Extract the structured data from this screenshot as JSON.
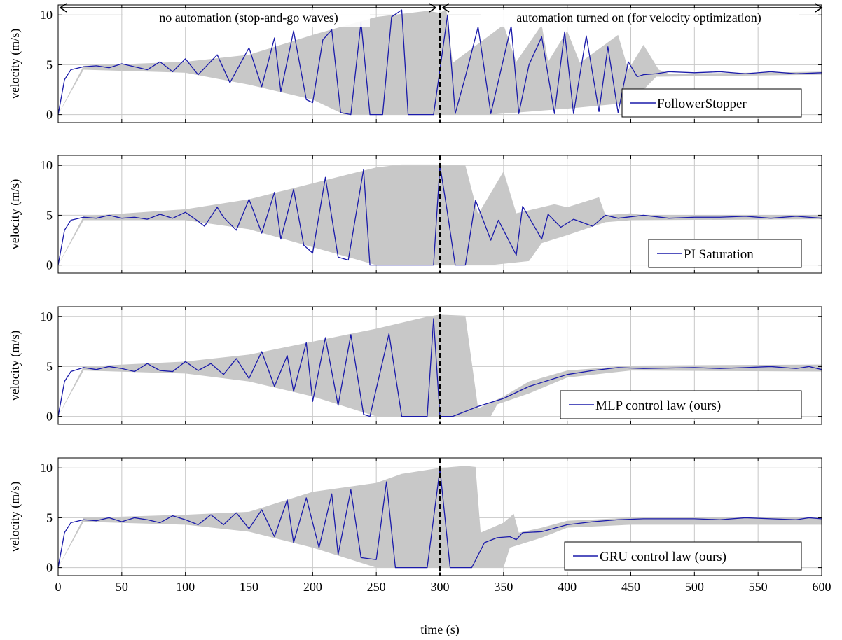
{
  "figure": {
    "annotations": {
      "left_text": "no automation (stop-and-go waves)",
      "right_text": "automation turned on (for velocity optimization)"
    },
    "xlabel": "time (s)",
    "ylabel": "velocity (m/s)"
  },
  "colors": {
    "line": "#1a1aaa",
    "band": "#c8c8c8",
    "grid": "#c8c8c8",
    "divider": "#000000"
  },
  "chart_data": [
    {
      "type": "line",
      "title": "",
      "xlabel": "",
      "ylabel": "velocity (m/s)",
      "xlim": [
        0,
        600
      ],
      "ylim": [
        -0.8,
        11
      ],
      "xticks": [
        0,
        50,
        100,
        150,
        200,
        250,
        300,
        350,
        400,
        450,
        500,
        550,
        600
      ],
      "yticks": [
        0,
        5,
        10
      ],
      "grid": true,
      "legend": "bottom-right",
      "divider_x": 300,
      "series": [
        {
          "name": "FollowerStopper",
          "x": [
            0,
            5,
            10,
            20,
            30,
            40,
            50,
            60,
            70,
            80,
            90,
            100,
            110,
            125,
            135,
            150,
            160,
            170,
            175,
            185,
            195,
            200,
            208,
            215,
            222,
            230,
            238,
            245,
            250,
            255,
            262,
            270,
            275,
            282,
            290,
            295,
            300,
            306,
            312,
            320,
            330,
            340,
            348,
            356,
            362,
            370,
            380,
            390,
            398,
            405,
            415,
            425,
            432,
            440,
            448,
            455,
            460,
            470,
            480,
            500,
            520,
            540,
            560,
            580,
            600
          ],
          "y": [
            0,
            3.5,
            4.5,
            4.8,
            4.9,
            4.7,
            5.1,
            4.8,
            4.5,
            5.3,
            4.3,
            5.6,
            4,
            6,
            3.2,
            6.7,
            2.8,
            7.7,
            2.3,
            8.4,
            1.5,
            1.2,
            7.5,
            8.5,
            0.2,
            0,
            9.3,
            0,
            0,
            0,
            9.8,
            10.5,
            0,
            0,
            0,
            0,
            4.5,
            10,
            0.1,
            3.8,
            8.8,
            0.1,
            4.5,
            8.9,
            0.1,
            5,
            7.8,
            0.1,
            8.3,
            0.1,
            7.9,
            0.3,
            6.8,
            0.2,
            5.3,
            3.8,
            4,
            4.1,
            4.3,
            4.2,
            4.3,
            4.1,
            4.3,
            4.1,
            4.2
          ]
        }
      ],
      "band": {
        "upper": [
          [
            0,
            0
          ],
          [
            20,
            4.9
          ],
          [
            100,
            5.3
          ],
          [
            150,
            6
          ],
          [
            200,
            8
          ],
          [
            250,
            9.8
          ],
          [
            290,
            10.4
          ],
          [
            300,
            10.2
          ],
          [
            305,
            10.6
          ],
          [
            310,
            5.2
          ],
          [
            350,
            9
          ],
          [
            360,
            5.3
          ],
          [
            380,
            9
          ],
          [
            385,
            5.3
          ],
          [
            400,
            8.4
          ],
          [
            410,
            5.2
          ],
          [
            440,
            8
          ],
          [
            448,
            4.5
          ],
          [
            460,
            7
          ],
          [
            472,
            4.5
          ],
          [
            480,
            4.1
          ],
          [
            600,
            4.3
          ]
        ],
        "lower": [
          [
            0,
            0
          ],
          [
            20,
            4.5
          ],
          [
            100,
            4.2
          ],
          [
            150,
            3
          ],
          [
            200,
            1.5
          ],
          [
            225,
            0
          ],
          [
            300,
            0
          ],
          [
            340,
            0
          ],
          [
            400,
            0.6
          ],
          [
            450,
            1.2
          ],
          [
            470,
            3.8
          ],
          [
            600,
            4
          ]
        ]
      }
    },
    {
      "type": "line",
      "title": "",
      "xlabel": "",
      "ylabel": "velocity (m/s)",
      "xlim": [
        0,
        600
      ],
      "ylim": [
        -0.8,
        11
      ],
      "xticks": [
        0,
        50,
        100,
        150,
        200,
        250,
        300,
        350,
        400,
        450,
        500,
        550,
        600
      ],
      "yticks": [
        0,
        5,
        10
      ],
      "grid": true,
      "legend": "bottom-right",
      "divider_x": 300,
      "series": [
        {
          "name": "PI Saturation",
          "x": [
            0,
            5,
            10,
            20,
            30,
            40,
            50,
            60,
            70,
            80,
            90,
            100,
            110,
            115,
            125,
            130,
            140,
            150,
            160,
            170,
            175,
            185,
            193,
            200,
            210,
            220,
            228,
            240,
            245,
            250,
            255,
            265,
            272,
            282,
            290,
            295,
            300,
            305,
            312,
            320,
            328,
            340,
            346,
            360,
            365,
            380,
            385,
            395,
            405,
            420,
            430,
            440,
            460,
            480,
            500,
            520,
            540,
            560,
            580,
            600
          ],
          "y": [
            0,
            3.5,
            4.5,
            4.8,
            4.7,
            5,
            4.7,
            4.8,
            4.6,
            5.1,
            4.7,
            5.3,
            4.4,
            3.9,
            5.8,
            4.8,
            3.5,
            6.6,
            3.2,
            7.3,
            2.6,
            7.6,
            2,
            1.2,
            8.8,
            0.8,
            0.5,
            9.6,
            0,
            0,
            0,
            0,
            0,
            0,
            0,
            0,
            10,
            6,
            0,
            0,
            6.5,
            2.5,
            4.5,
            1,
            5.9,
            2.6,
            5.1,
            3.8,
            4.6,
            3.9,
            5,
            4.7,
            5,
            4.7,
            4.8,
            4.8,
            4.9,
            4.7,
            4.9,
            4.7
          ]
        }
      ],
      "band": {
        "upper": [
          [
            0,
            0
          ],
          [
            20,
            4.9
          ],
          [
            100,
            5.6
          ],
          [
            150,
            6.6
          ],
          [
            200,
            8.2
          ],
          [
            250,
            9.8
          ],
          [
            270,
            10.1
          ],
          [
            300,
            10.1
          ],
          [
            320,
            10
          ],
          [
            330,
            5.1
          ],
          [
            350,
            9.4
          ],
          [
            360,
            5.2
          ],
          [
            390,
            6.1
          ],
          [
            400,
            5.8
          ],
          [
            425,
            6.8
          ],
          [
            430,
            5
          ],
          [
            450,
            5.2
          ],
          [
            460,
            5
          ],
          [
            600,
            5
          ]
        ],
        "lower": [
          [
            0,
            0
          ],
          [
            20,
            4.5
          ],
          [
            100,
            4.5
          ],
          [
            150,
            3.6
          ],
          [
            200,
            1.8
          ],
          [
            250,
            0
          ],
          [
            300,
            0
          ],
          [
            340,
            0
          ],
          [
            370,
            0.4
          ],
          [
            380,
            2.2
          ],
          [
            400,
            3
          ],
          [
            430,
            4.3
          ],
          [
            450,
            4.5
          ],
          [
            600,
            4.6
          ]
        ]
      }
    },
    {
      "type": "line",
      "title": "",
      "xlabel": "",
      "ylabel": "velocity (m/s)",
      "xlim": [
        0,
        600
      ],
      "ylim": [
        -0.8,
        11
      ],
      "xticks": [
        0,
        50,
        100,
        150,
        200,
        250,
        300,
        350,
        400,
        450,
        500,
        550,
        600
      ],
      "yticks": [
        0,
        5,
        10
      ],
      "grid": true,
      "legend": "bottom-right",
      "divider_x": 300,
      "series": [
        {
          "name": "MLP control law (ours)",
          "x": [
            0,
            5,
            10,
            20,
            30,
            40,
            50,
            60,
            70,
            80,
            90,
            100,
            110,
            120,
            130,
            140,
            150,
            160,
            170,
            180,
            185,
            195,
            200,
            210,
            220,
            230,
            240,
            245,
            260,
            270,
            280,
            290,
            295,
            300,
            310,
            330,
            350,
            370,
            390,
            400,
            420,
            440,
            460,
            500,
            520,
            540,
            560,
            580,
            590,
            600
          ],
          "y": [
            0,
            3.5,
            4.5,
            4.9,
            4.7,
            5,
            4.8,
            4.5,
            5.3,
            4.6,
            4.5,
            5.5,
            4.6,
            5.3,
            4.2,
            5.8,
            3.8,
            6.5,
            3,
            6.1,
            2.5,
            7.4,
            1.5,
            7.9,
            1.1,
            8.2,
            0.2,
            0,
            8.3,
            0,
            0,
            0,
            9.8,
            0,
            0,
            1,
            1.8,
            3,
            3.8,
            4.2,
            4.6,
            4.9,
            4.8,
            4.9,
            4.8,
            4.9,
            5,
            4.8,
            5,
            4.7
          ]
        }
      ],
      "band": {
        "upper": [
          [
            0,
            0
          ],
          [
            20,
            5
          ],
          [
            100,
            5.5
          ],
          [
            150,
            6.2
          ],
          [
            200,
            7.5
          ],
          [
            250,
            8.8
          ],
          [
            290,
            10
          ],
          [
            300,
            10.2
          ],
          [
            320,
            10.1
          ],
          [
            330,
            0.8
          ],
          [
            350,
            2
          ],
          [
            370,
            3.5
          ],
          [
            400,
            4.6
          ],
          [
            450,
            5.1
          ],
          [
            600,
            5.2
          ]
        ],
        "lower": [
          [
            0,
            0
          ],
          [
            20,
            4.6
          ],
          [
            100,
            4.3
          ],
          [
            150,
            3.5
          ],
          [
            200,
            2
          ],
          [
            250,
            0
          ],
          [
            300,
            0
          ],
          [
            340,
            0
          ],
          [
            345,
            1.2
          ],
          [
            370,
            2.3
          ],
          [
            400,
            3.9
          ],
          [
            450,
            4.6
          ],
          [
            600,
            4.5
          ]
        ]
      }
    },
    {
      "type": "line",
      "title": "",
      "xlabel": "time (s)",
      "ylabel": "velocity (m/s)",
      "xlim": [
        0,
        600
      ],
      "ylim": [
        -0.8,
        11
      ],
      "xticks": [
        0,
        50,
        100,
        150,
        200,
        250,
        300,
        350,
        400,
        450,
        500,
        550,
        600
      ],
      "yticks": [
        0,
        5,
        10
      ],
      "grid": true,
      "legend": "bottom-right",
      "divider_x": 300,
      "series": [
        {
          "name": "GRU control law (ours)",
          "x": [
            0,
            5,
            10,
            20,
            30,
            40,
            50,
            60,
            70,
            80,
            90,
            100,
            110,
            120,
            130,
            140,
            150,
            160,
            170,
            180,
            185,
            195,
            205,
            215,
            220,
            230,
            238,
            250,
            258,
            265,
            270,
            282,
            290,
            300,
            308,
            315,
            320,
            325,
            335,
            345,
            355,
            360,
            365,
            380,
            400,
            420,
            440,
            460,
            500,
            520,
            540,
            560,
            580,
            590,
            600
          ],
          "y": [
            0,
            3.5,
            4.5,
            4.8,
            4.7,
            5,
            4.6,
            5,
            4.8,
            4.5,
            5.2,
            4.8,
            4.3,
            5.3,
            4.3,
            5.5,
            3.9,
            5.8,
            3.1,
            6.8,
            2.5,
            7,
            2,
            7.4,
            1.3,
            7.8,
            1,
            0.8,
            8.6,
            0,
            0,
            0,
            0,
            9.9,
            0,
            0,
            0,
            0,
            2.5,
            3,
            3.1,
            2.8,
            3.5,
            3.6,
            4.3,
            4.6,
            4.8,
            4.9,
            4.9,
            4.8,
            5,
            4.9,
            4.8,
            5,
            4.9
          ]
        }
      ],
      "band": {
        "upper": [
          [
            0,
            0
          ],
          [
            20,
            5
          ],
          [
            100,
            5.3
          ],
          [
            150,
            5.6
          ],
          [
            200,
            7.6
          ],
          [
            250,
            8.5
          ],
          [
            270,
            9.4
          ],
          [
            300,
            10
          ],
          [
            320,
            10.2
          ],
          [
            328,
            10.1
          ],
          [
            332,
            3.5
          ],
          [
            350,
            4.5
          ],
          [
            358,
            5.4
          ],
          [
            362,
            3.5
          ],
          [
            380,
            4
          ],
          [
            400,
            4.7
          ],
          [
            450,
            5
          ],
          [
            600,
            5.1
          ]
        ],
        "lower": [
          [
            0,
            0
          ],
          [
            20,
            4.6
          ],
          [
            100,
            4.3
          ],
          [
            150,
            3.6
          ],
          [
            200,
            2
          ],
          [
            250,
            0
          ],
          [
            300,
            0
          ],
          [
            350,
            0
          ],
          [
            355,
            2
          ],
          [
            380,
            3
          ],
          [
            400,
            4
          ],
          [
            450,
            4.3
          ],
          [
            600,
            4.3
          ]
        ]
      }
    }
  ]
}
